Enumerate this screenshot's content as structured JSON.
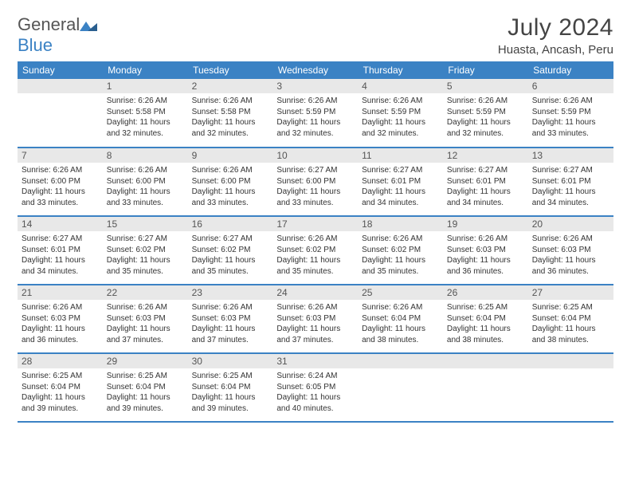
{
  "brand": {
    "part1": "General",
    "part2": "Blue"
  },
  "title": "July 2024",
  "location": "Huasta, Ancash, Peru",
  "colors": {
    "accent": "#3b82c4",
    "dayBg": "#e8e8e8",
    "text": "#333333"
  },
  "weekdays": [
    "Sunday",
    "Monday",
    "Tuesday",
    "Wednesday",
    "Thursday",
    "Friday",
    "Saturday"
  ],
  "grid": [
    [
      null,
      {
        "n": "1",
        "sr": "6:26 AM",
        "ss": "5:58 PM",
        "dl": "11 hours and 32 minutes."
      },
      {
        "n": "2",
        "sr": "6:26 AM",
        "ss": "5:58 PM",
        "dl": "11 hours and 32 minutes."
      },
      {
        "n": "3",
        "sr": "6:26 AM",
        "ss": "5:59 PM",
        "dl": "11 hours and 32 minutes."
      },
      {
        "n": "4",
        "sr": "6:26 AM",
        "ss": "5:59 PM",
        "dl": "11 hours and 32 minutes."
      },
      {
        "n": "5",
        "sr": "6:26 AM",
        "ss": "5:59 PM",
        "dl": "11 hours and 32 minutes."
      },
      {
        "n": "6",
        "sr": "6:26 AM",
        "ss": "5:59 PM",
        "dl": "11 hours and 33 minutes."
      }
    ],
    [
      {
        "n": "7",
        "sr": "6:26 AM",
        "ss": "6:00 PM",
        "dl": "11 hours and 33 minutes."
      },
      {
        "n": "8",
        "sr": "6:26 AM",
        "ss": "6:00 PM",
        "dl": "11 hours and 33 minutes."
      },
      {
        "n": "9",
        "sr": "6:26 AM",
        "ss": "6:00 PM",
        "dl": "11 hours and 33 minutes."
      },
      {
        "n": "10",
        "sr": "6:27 AM",
        "ss": "6:00 PM",
        "dl": "11 hours and 33 minutes."
      },
      {
        "n": "11",
        "sr": "6:27 AM",
        "ss": "6:01 PM",
        "dl": "11 hours and 34 minutes."
      },
      {
        "n": "12",
        "sr": "6:27 AM",
        "ss": "6:01 PM",
        "dl": "11 hours and 34 minutes."
      },
      {
        "n": "13",
        "sr": "6:27 AM",
        "ss": "6:01 PM",
        "dl": "11 hours and 34 minutes."
      }
    ],
    [
      {
        "n": "14",
        "sr": "6:27 AM",
        "ss": "6:01 PM",
        "dl": "11 hours and 34 minutes."
      },
      {
        "n": "15",
        "sr": "6:27 AM",
        "ss": "6:02 PM",
        "dl": "11 hours and 35 minutes."
      },
      {
        "n": "16",
        "sr": "6:27 AM",
        "ss": "6:02 PM",
        "dl": "11 hours and 35 minutes."
      },
      {
        "n": "17",
        "sr": "6:26 AM",
        "ss": "6:02 PM",
        "dl": "11 hours and 35 minutes."
      },
      {
        "n": "18",
        "sr": "6:26 AM",
        "ss": "6:02 PM",
        "dl": "11 hours and 35 minutes."
      },
      {
        "n": "19",
        "sr": "6:26 AM",
        "ss": "6:03 PM",
        "dl": "11 hours and 36 minutes."
      },
      {
        "n": "20",
        "sr": "6:26 AM",
        "ss": "6:03 PM",
        "dl": "11 hours and 36 minutes."
      }
    ],
    [
      {
        "n": "21",
        "sr": "6:26 AM",
        "ss": "6:03 PM",
        "dl": "11 hours and 36 minutes."
      },
      {
        "n": "22",
        "sr": "6:26 AM",
        "ss": "6:03 PM",
        "dl": "11 hours and 37 minutes."
      },
      {
        "n": "23",
        "sr": "6:26 AM",
        "ss": "6:03 PM",
        "dl": "11 hours and 37 minutes."
      },
      {
        "n": "24",
        "sr": "6:26 AM",
        "ss": "6:03 PM",
        "dl": "11 hours and 37 minutes."
      },
      {
        "n": "25",
        "sr": "6:26 AM",
        "ss": "6:04 PM",
        "dl": "11 hours and 38 minutes."
      },
      {
        "n": "26",
        "sr": "6:25 AM",
        "ss": "6:04 PM",
        "dl": "11 hours and 38 minutes."
      },
      {
        "n": "27",
        "sr": "6:25 AM",
        "ss": "6:04 PM",
        "dl": "11 hours and 38 minutes."
      }
    ],
    [
      {
        "n": "28",
        "sr": "6:25 AM",
        "ss": "6:04 PM",
        "dl": "11 hours and 39 minutes."
      },
      {
        "n": "29",
        "sr": "6:25 AM",
        "ss": "6:04 PM",
        "dl": "11 hours and 39 minutes."
      },
      {
        "n": "30",
        "sr": "6:25 AM",
        "ss": "6:04 PM",
        "dl": "11 hours and 39 minutes."
      },
      {
        "n": "31",
        "sr": "6:24 AM",
        "ss": "6:05 PM",
        "dl": "11 hours and 40 minutes."
      },
      null,
      null,
      null
    ]
  ],
  "labels": {
    "sunrise": "Sunrise:",
    "sunset": "Sunset:",
    "daylight": "Daylight:"
  }
}
